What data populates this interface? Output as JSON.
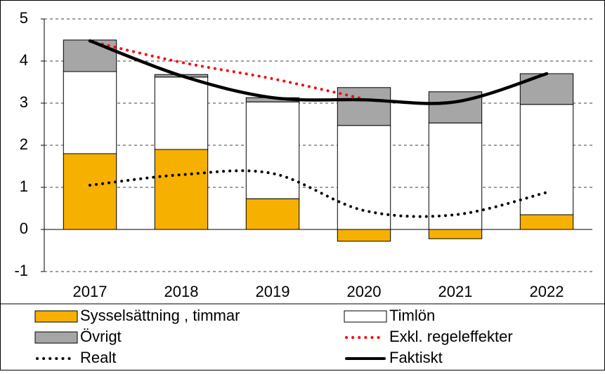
{
  "chart_data": {
    "type": "bar",
    "stacked": true,
    "categories": [
      "2017",
      "2018",
      "2019",
      "2020",
      "2021",
      "2022"
    ],
    "series": [
      {
        "name": "Sysselsättning , timmar",
        "type": "bar",
        "color": "#f5b000",
        "values": [
          1.8,
          1.9,
          0.73,
          -0.28,
          -0.22,
          0.35
        ]
      },
      {
        "name": "Timlön",
        "type": "bar",
        "color": "#ffffff",
        "values": [
          1.95,
          1.72,
          2.3,
          2.47,
          2.53,
          2.62
        ]
      },
      {
        "name": "Övrigt",
        "type": "bar",
        "color": "#a6a6a6",
        "values": [
          0.75,
          0.06,
          0.1,
          0.9,
          0.74,
          0.73
        ]
      },
      {
        "name": "Exkl. regeleffekter",
        "type": "line",
        "style": "dotted",
        "color": "#ff0000",
        "values": [
          4.47,
          3.97,
          3.58,
          3.1,
          null,
          null
        ]
      },
      {
        "name": "Realt",
        "type": "line",
        "style": "dotted",
        "color": "#000000",
        "values": [
          1.05,
          1.3,
          1.33,
          0.45,
          0.35,
          0.88
        ]
      },
      {
        "name": "Faktiskt",
        "type": "line",
        "style": "solid",
        "color": "#000000",
        "values": [
          4.48,
          3.65,
          3.13,
          3.08,
          3.03,
          3.7
        ]
      }
    ],
    "ylim": [
      -1,
      5
    ],
    "yticks": [
      -1,
      0,
      1,
      2,
      3,
      4,
      5
    ],
    "grid": true,
    "legend": "bottom"
  }
}
